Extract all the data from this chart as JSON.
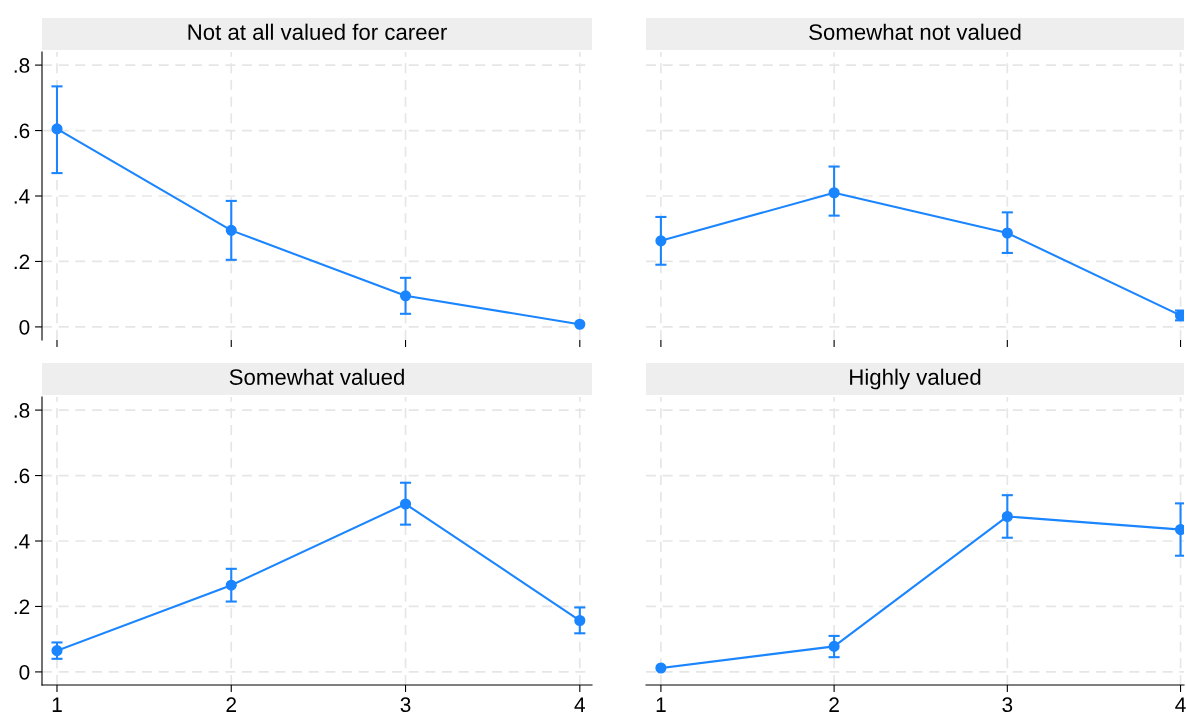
{
  "chart_data": [
    {
      "type": "line",
      "title": "Not at all valued for career",
      "x": [
        1,
        2,
        3,
        4
      ],
      "xlim": [
        0.914,
        4.07
      ],
      "xticks": [
        {
          "value": 1,
          "label": null
        },
        {
          "value": 2,
          "label": null
        },
        {
          "value": 3,
          "label": null
        },
        {
          "value": 4,
          "label": null
        }
      ],
      "ylim": [
        -0.04,
        0.84
      ],
      "yticks": [
        0,
        {
          "value": 0.2,
          "label": ".2"
        },
        {
          "value": 0.4,
          "label": ".4"
        },
        {
          "value": 0.6,
          "label": ".6"
        },
        {
          "value": 0.8,
          "label": ".8"
        }
      ],
      "tick_labels": "y",
      "grid": true,
      "marker": "circle",
      "line_style": "solid",
      "series": [
        {
          "color": "#1a85ff",
          "values": [
            0.605,
            0.295,
            0.095,
            0.008
          ],
          "errors": [
            [
              0.47,
              0.735
            ],
            [
              0.205,
              0.385
            ],
            [
              0.04,
              0.15
            ],
            null
          ]
        }
      ]
    },
    {
      "type": "line",
      "title": "Somewhat not valued",
      "x": [
        1,
        2,
        3,
        4
      ],
      "xlim": [
        0.914,
        4.02
      ],
      "xticks": [
        {
          "value": 1,
          "label": null
        },
        {
          "value": 2,
          "label": null
        },
        {
          "value": 3,
          "label": null
        },
        {
          "value": 4,
          "label": null
        }
      ],
      "ylim": [
        -0.04,
        0.84
      ],
      "yticks": [
        {
          "value": 0,
          "label": null
        },
        {
          "value": 0.2,
          "label": null
        },
        {
          "value": 0.4,
          "label": null
        },
        {
          "value": 0.6,
          "label": null
        },
        {
          "value": 0.8,
          "label": null
        }
      ],
      "tick_labels": false,
      "grid": true,
      "marker": "circle",
      "line_style": "solid",
      "series": [
        {
          "color": "#1a85ff",
          "values": [
            0.263,
            0.41,
            0.287,
            0.035
          ],
          "errors": [
            [
              0.19,
              0.336
            ],
            [
              0.34,
              0.49
            ],
            [
              0.226,
              0.35
            ],
            [
              0.02,
              0.05
            ]
          ]
        }
      ]
    },
    {
      "type": "line",
      "title": "Somewhat valued",
      "x": [
        1,
        2,
        3,
        4
      ],
      "xlim": [
        0.914,
        4.07
      ],
      "xticks": [
        1,
        2,
        3,
        4
      ],
      "ylim": [
        -0.04,
        0.84
      ],
      "yticks": [
        0,
        {
          "value": 0.2,
          "label": ".2"
        },
        {
          "value": 0.4,
          "label": ".4"
        },
        {
          "value": 0.6,
          "label": ".6"
        },
        {
          "value": 0.8,
          "label": ".8"
        }
      ],
      "grid": true,
      "marker": "circle",
      "line_style": "solid",
      "series": [
        {
          "color": "#1a85ff",
          "values": [
            0.065,
            0.265,
            0.513,
            0.157
          ],
          "errors": [
            [
              0.04,
              0.09
            ],
            [
              0.215,
              0.315
            ],
            [
              0.45,
              0.578
            ],
            [
              0.118,
              0.197
            ]
          ]
        }
      ]
    },
    {
      "type": "line",
      "title": "Highly valued",
      "x": [
        1,
        2,
        3,
        4
      ],
      "xlim": [
        0.914,
        4.02
      ],
      "xticks": [
        1,
        2,
        3,
        4
      ],
      "ylim": [
        -0.04,
        0.84
      ],
      "yticks": [
        {
          "value": 0,
          "label": null
        },
        {
          "value": 0.2,
          "label": null
        },
        {
          "value": 0.4,
          "label": null
        },
        {
          "value": 0.6,
          "label": null
        },
        {
          "value": 0.8,
          "label": null
        }
      ],
      "tick_labels": "x",
      "grid": true,
      "marker": "circle",
      "line_style": "solid",
      "series": [
        {
          "color": "#1a85ff",
          "values": [
            0.012,
            0.078,
            0.475,
            0.435
          ],
          "errors": [
            null,
            [
              0.045,
              0.11
            ],
            [
              0.41,
              0.54
            ],
            [
              0.355,
              0.515
            ]
          ]
        }
      ]
    }
  ]
}
